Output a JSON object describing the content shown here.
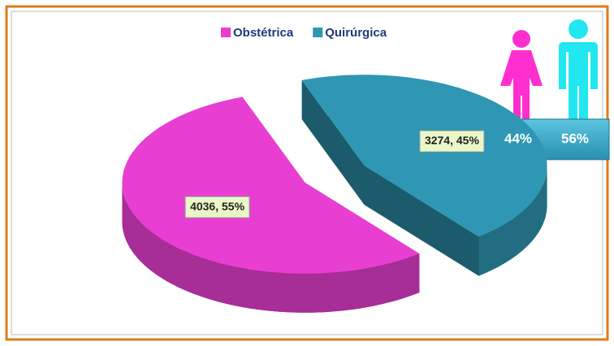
{
  "chart_data": {
    "type": "pie",
    "categories": [
      "Obstétrica",
      "Quirúrgica"
    ],
    "values": [
      4036,
      3274
    ],
    "value_labels": [
      "4036, 55%",
      "3274, 45%"
    ],
    "colors": [
      "#e83fd2",
      "#2f97b3"
    ],
    "legend": "top"
  },
  "inset": {
    "values": [
      44,
      56
    ],
    "value_labels": [
      "44%",
      "56%"
    ],
    "colors": [
      "#ff2fcf",
      "#22e6f0"
    ]
  }
}
